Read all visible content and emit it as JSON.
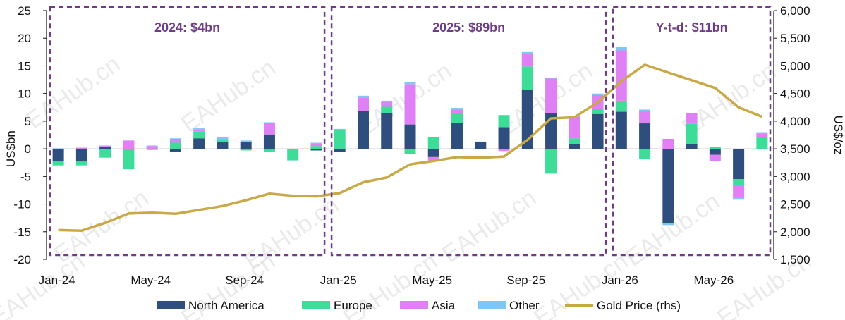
{
  "watermark": "EAHub.cn",
  "chart_data": {
    "type": "bar",
    "stacked": true,
    "categories": [
      "Jan-24",
      "Feb-24",
      "Mar-24",
      "Apr-24",
      "May-24",
      "Jun-24",
      "Jul-24",
      "Aug-24",
      "Sep-24",
      "Oct-24",
      "Nov-24",
      "Dec-24",
      "Jan-25",
      "Feb-25",
      "Mar-25",
      "Apr-25",
      "May-25",
      "Jun-25",
      "Jul-25",
      "Aug-25",
      "Sep-25",
      "Oct-25",
      "Nov-25",
      "Dec-25",
      "Jan-26",
      "Feb-26",
      "Mar-26",
      "Apr-26",
      "May-26",
      "Jun-26",
      "Jul-26"
    ],
    "x_tick_labels": [
      "Jan-24",
      "May-24",
      "Sep-24",
      "Jan-25",
      "May-25",
      "Sep-25",
      "Jan-26",
      "May-26"
    ],
    "series": [
      {
        "name": "North America",
        "color": "#2e4e7e",
        "values": [
          -2.2,
          -2.2,
          0.3,
          0,
          0,
          -0.6,
          1.9,
          1.3,
          1.2,
          2.6,
          0,
          -0.3,
          -0.6,
          6.8,
          6.5,
          4.4,
          -1.5,
          4.7,
          1.3,
          3.9,
          10.6,
          6.5,
          0.9,
          6.3,
          6.7,
          4.6,
          -13.4,
          0.9,
          -1.1,
          -5.5,
          0
        ]
      },
      {
        "name": "Europe",
        "color": "#3ddc97",
        "values": [
          -0.8,
          -0.8,
          -1.6,
          -3.7,
          -0.2,
          1.1,
          1.2,
          0.4,
          -0.3,
          -0.6,
          -2.1,
          0.5,
          3.4,
          0,
          1.1,
          -0.9,
          2.1,
          1.8,
          -0.1,
          2.2,
          4.3,
          -4.5,
          1.0,
          0.9,
          2.0,
          -1.9,
          -0.2,
          3.6,
          0.4,
          -1.0,
          2.1
        ]
      },
      {
        "name": "Asia",
        "color": "#e080f5",
        "values": [
          0,
          0.2,
          0.2,
          1.5,
          0.5,
          0.7,
          0.4,
          0.1,
          0.1,
          2.1,
          0,
          0.5,
          0,
          2.5,
          0.9,
          7.3,
          -0.6,
          0.6,
          0,
          -0.4,
          2.3,
          6.2,
          3.9,
          2.5,
          9.1,
          2.3,
          1.8,
          1.9,
          -1.1,
          -2.4,
          0.7
        ]
      },
      {
        "name": "Other",
        "color": "#7fc6f5",
        "values": [
          0.1,
          0,
          0.1,
          0,
          0.1,
          0.1,
          0.2,
          0.3,
          0.2,
          0.1,
          0,
          0.1,
          0.2,
          0.3,
          0.2,
          0.3,
          0,
          0.3,
          0,
          0,
          0.3,
          0.2,
          0.1,
          0.3,
          0.6,
          0.2,
          -0.2,
          0.1,
          0,
          -0.3,
          0.2
        ]
      },
      {
        "name": "Gold Price (rhs)",
        "type": "line",
        "axis": "right",
        "color": "#c9a845",
        "values": [
          2030,
          2020,
          2160,
          2330,
          2345,
          2325,
          2395,
          2465,
          2570,
          2690,
          2650,
          2640,
          2700,
          2895,
          2980,
          3220,
          3280,
          3350,
          3340,
          3360,
          3660,
          4050,
          4070,
          4340,
          4720,
          5020,
          4880,
          4740,
          4600,
          4250,
          4080
        ]
      }
    ],
    "ylabel": "US$bn",
    "ylim": [
      -20,
      25
    ],
    "yticks": [
      -20,
      -15,
      -10,
      -5,
      0,
      5,
      10,
      15,
      20,
      25
    ],
    "y2label": "US$/oz",
    "y2lim": [
      1500,
      6000
    ],
    "y2ticks": [
      "1,500",
      "2,000",
      "2,500",
      "3,000",
      "3,500",
      "4,000",
      "4,500",
      "5,000",
      "5,500",
      "6,000"
    ],
    "annotations": [
      "2024: $4bn",
      "2025: $89bn",
      "Y-t-d: $11bn"
    ],
    "legend_position": "bottom"
  }
}
